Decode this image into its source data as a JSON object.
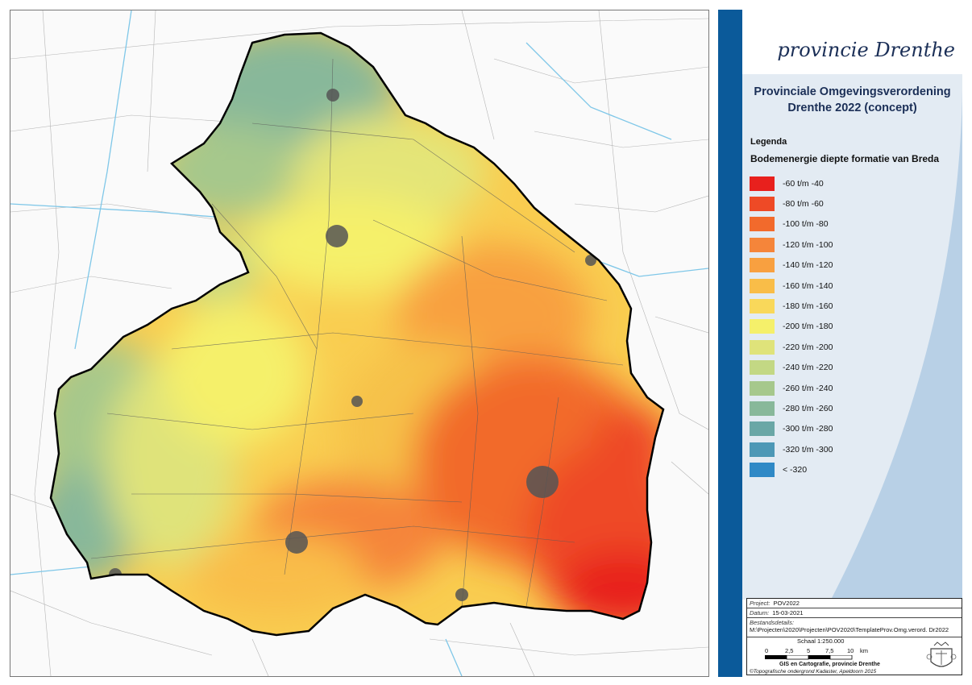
{
  "header": {
    "logo_text": "provincie Drenthe",
    "title_line1": "Provinciale Omgevingsverordening",
    "title_line2": "Drenthe 2022 (concept)"
  },
  "legend": {
    "title": "Legenda",
    "subtitle": "Bodemenergie diepte formatie van Breda",
    "items": [
      {
        "label": "-60 t/m -40",
        "color": "#e8201d"
      },
      {
        "label": "-80 t/m -60",
        "color": "#ee4a26"
      },
      {
        "label": "-100 t/m -80",
        "color": "#f26a2c"
      },
      {
        "label": "-120 t/m -100",
        "color": "#f5853a"
      },
      {
        "label": "-140 t/m -120",
        "color": "#f8a040"
      },
      {
        "label": "-160 t/m -140",
        "color": "#f9bd48"
      },
      {
        "label": "-180 t/m -160",
        "color": "#f9d85a"
      },
      {
        "label": "-200 t/m -180",
        "color": "#f5f06a"
      },
      {
        "label": "-220 t/m -200",
        "color": "#dfe37a"
      },
      {
        "label": "-240 t/m -220",
        "color": "#c3d884"
      },
      {
        "label": "-260 t/m -240",
        "color": "#a6c88c"
      },
      {
        "label": "-280 t/m -260",
        "color": "#88b89a"
      },
      {
        "label": "-300 t/m -280",
        "color": "#6aa7a6"
      },
      {
        "label": "-320 t/m -300",
        "color": "#4d98b6"
      },
      {
        "label": "< -320",
        "color": "#2f89c6"
      }
    ]
  },
  "metadata": {
    "project_label": "Project:",
    "project_value": "POV2022",
    "date_label": "Datum:",
    "date_value": "15-03-2021",
    "file_label": "Bestandsdetails:",
    "file_value": "M:\\Projecten\\2020\\Projecten\\POV2020\\TemplateProv.Omg.verord. Dr2022",
    "scale_text": "Schaal 1:250.000",
    "scale_ticks": [
      "0",
      "2,5",
      "5",
      "7,5",
      "10"
    ],
    "scale_unit": "km",
    "credit": "GIS en Cartografie, provincie Drenthe",
    "copyright": "©Topografische ondergrond Kadaster, Apeldoorn 2015"
  }
}
